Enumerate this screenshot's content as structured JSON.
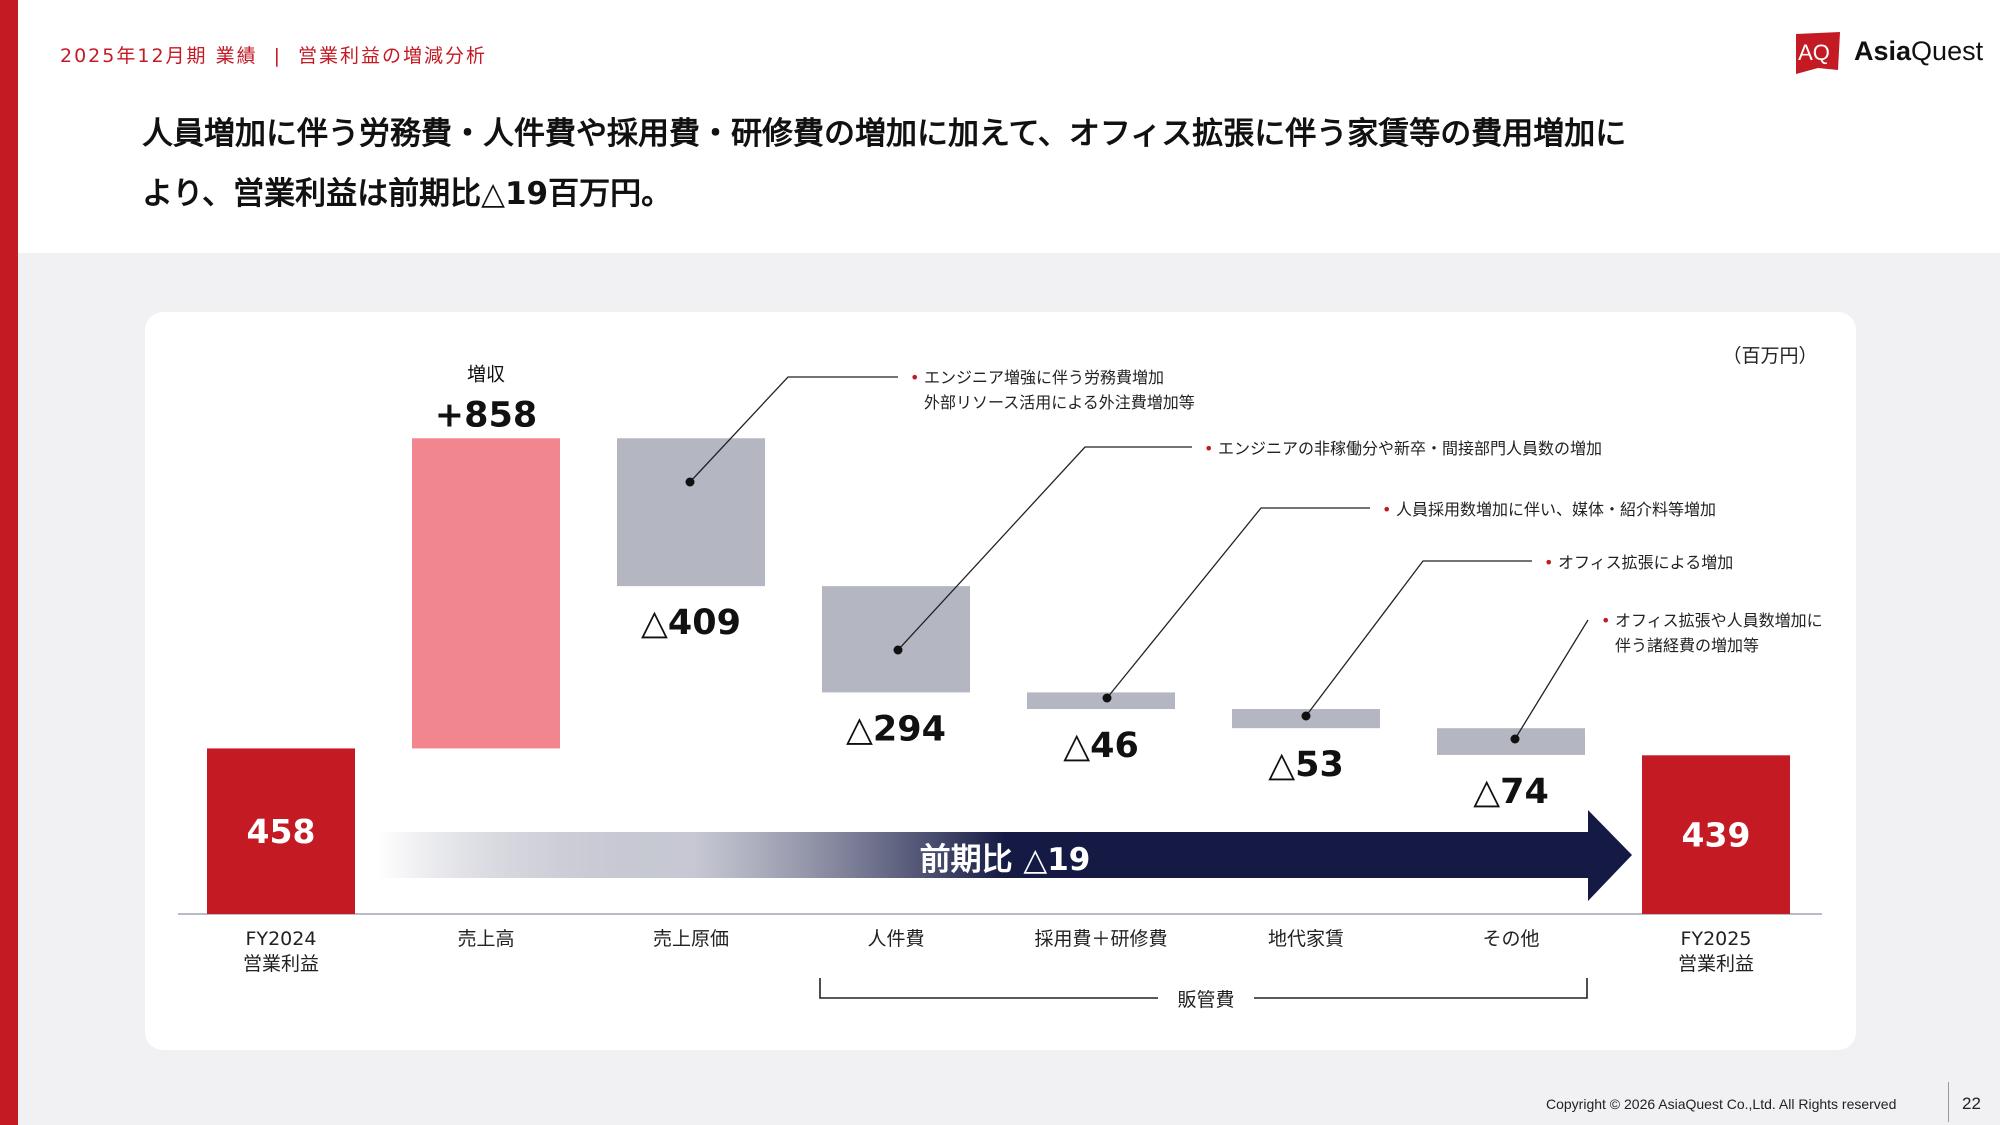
{
  "header": {
    "breadcrumb_period": "2025年12月期 業績",
    "breadcrumb_separator": "|",
    "breadcrumb_topic": "営業利益の増減分析",
    "headline_line1": "人員増加に伴う労務費・人件費や採用費・研修費の増加に加えて、オフィス拡張に伴う家賃等の費用増加に",
    "headline_line2": "より、営業利益は前期比△19百万円。"
  },
  "logo": {
    "mark_text": "AQ",
    "name_bold": "Asia",
    "name_regular": "Quest"
  },
  "colors": {
    "accent_red": "#c41a24",
    "increase_pink": "#f2868e",
    "decrease_gray": "#b4b7c2",
    "arrow_navy": "#151a44"
  },
  "chart_data": {
    "type": "waterfall",
    "unit_label": "（百万円）",
    "steps": [
      {
        "category": "FY2024",
        "category_sub": "営業利益",
        "kind": "total",
        "value": 458,
        "label": "458"
      },
      {
        "category": "売上高",
        "kind": "increase",
        "value": 858,
        "label": "+858",
        "caption": "増収"
      },
      {
        "category": "売上原価",
        "kind": "decrease",
        "value": -409,
        "label": "△409"
      },
      {
        "category": "人件費",
        "kind": "decrease",
        "value": -294,
        "label": "△294"
      },
      {
        "category": "採用費＋研修費",
        "kind": "decrease",
        "value": -46,
        "label": "△46"
      },
      {
        "category": "地代家賃",
        "kind": "decrease",
        "value": -53,
        "label": "△53"
      },
      {
        "category": "その他",
        "kind": "decrease",
        "value": -74,
        "label": "△74"
      },
      {
        "category": "FY2025",
        "category_sub": "営業利益",
        "kind": "total",
        "value": 439,
        "label": "439"
      }
    ],
    "bracket_label": "販管費",
    "arrow_label": "前期比 △19",
    "annotations": [
      {
        "step": 2,
        "lines": [
          "エンジニア増強に伴う労務費増加",
          "外部リソース活用による外注費増加等"
        ]
      },
      {
        "step": 3,
        "lines": [
          "エンジニアの非稼働分や新卒・間接部門人員数の増加"
        ]
      },
      {
        "step": 4,
        "lines": [
          "人員採用数増加に伴い、媒体・紹介料等増加"
        ]
      },
      {
        "step": 5,
        "lines": [
          "オフィス拡張による増加"
        ]
      },
      {
        "step": 6,
        "lines": [
          "オフィス拡張や人員数増加に",
          "伴う諸経費の増加等"
        ]
      }
    ],
    "bullet": "•"
  },
  "footer": {
    "copyright": "Copyright © 2026 AsiaQuest Co.,Ltd. All Rights reserved",
    "page_number": "22"
  }
}
